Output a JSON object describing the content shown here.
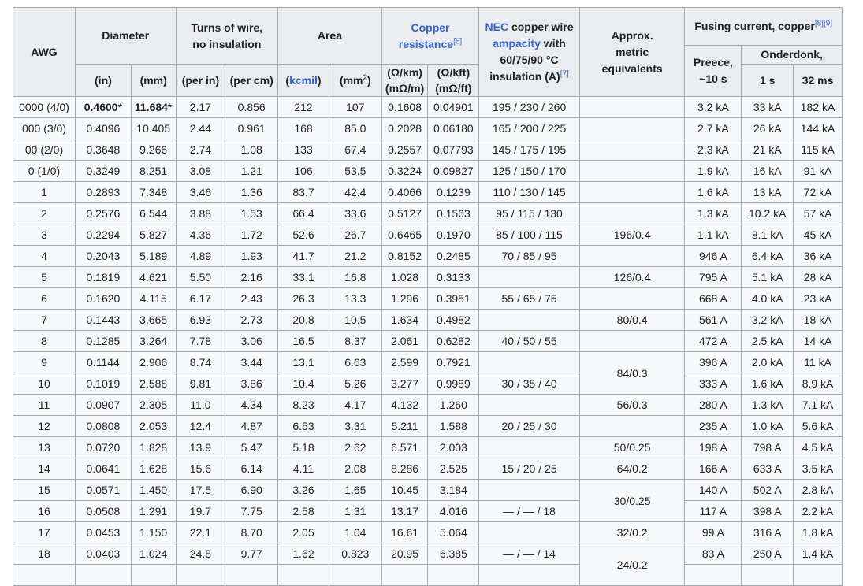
{
  "colors": {
    "link": "#3366cc",
    "header_bg": "#eaecf0",
    "cell_bg": "#f8f9fa",
    "border": "#a2a9b1"
  },
  "headers": {
    "awg": "AWG",
    "diameter": "Diameter",
    "turns": "Turns of wire,",
    "turns2": "no insulation",
    "area": "Area",
    "copper_link": "Copper",
    "copper_link2": "resistance",
    "copper_ref": "[6]",
    "nec_link": "NEC",
    "nec_text1": " copper wire",
    "nec_link2": "ampacity",
    "nec_text2": " with",
    "nec_text3": "60/75/90 °C",
    "nec_text4": "insulation (A)",
    "nec_ref": "[7]",
    "metric1": "Approx.",
    "metric2": "metric",
    "metric3": "equivalents",
    "fusing": "Fusing current, copper",
    "fusing_ref": "[8][9]",
    "in": "(in)",
    "mm": "(mm)",
    "per_in": "(per in)",
    "per_cm": "(per cm)",
    "kcmil_open": "(",
    "kcmil": "kcmil",
    "kcmil_close": ")",
    "mm2": "(mm",
    "mm2_sup": "2",
    "mm2_close": ")",
    "ohm_km": "(Ω/km)",
    "mohm_m": "(mΩ/m)",
    "ohm_kft": "(Ω/kft)",
    "mohm_ft": "(mΩ/ft)",
    "preece1": "Preece,",
    "preece2": "~10 s",
    "onderdonk": "Onderdonk,",
    "s1": "1 s",
    "ms32": "32 ms"
  },
  "rows": [
    {
      "awg": "0000 (4/0)",
      "in": "0.4600",
      "in_ast": "*",
      "mm": "11.684",
      "mm_ast": "*",
      "per_in": "2.17",
      "per_cm": "0.856",
      "kcmil": "212",
      "mm2": "107",
      "ohm_km": "0.1608",
      "ohm_kft": "0.04901",
      "nec": "195 / 230 / 260",
      "preece": "3.2 kA",
      "s1": "33 kA",
      "ms32": "182 kA"
    },
    {
      "awg": "000 (3/0)",
      "in": "0.4096",
      "mm": "10.405",
      "per_in": "2.44",
      "per_cm": "0.961",
      "kcmil": "168",
      "mm2": "85.0",
      "ohm_km": "0.2028",
      "ohm_kft": "0.06180",
      "nec": "165 / 200 / 225",
      "preece": "2.7 kA",
      "s1": "26 kA",
      "ms32": "144 kA"
    },
    {
      "awg": "00 (2/0)",
      "in": "0.3648",
      "mm": "9.266",
      "per_in": "2.74",
      "per_cm": "1.08",
      "kcmil": "133",
      "mm2": "67.4",
      "ohm_km": "0.2557",
      "ohm_kft": "0.07793",
      "nec": "145 / 175 / 195",
      "preece": "2.3 kA",
      "s1": "21 kA",
      "ms32": "115 kA"
    },
    {
      "awg": "0 (1/0)",
      "in": "0.3249",
      "mm": "8.251",
      "per_in": "3.08",
      "per_cm": "1.21",
      "kcmil": "106",
      "mm2": "53.5",
      "ohm_km": "0.3224",
      "ohm_kft": "0.09827",
      "nec": "125 / 150 / 170",
      "preece": "1.9 kA",
      "s1": "16 kA",
      "ms32": "91 kA"
    },
    {
      "awg": "1",
      "in": "0.2893",
      "mm": "7.348",
      "per_in": "3.46",
      "per_cm": "1.36",
      "kcmil": "83.7",
      "mm2": "42.4",
      "ohm_km": "0.4066",
      "ohm_kft": "0.1239",
      "nec": "110 / 130 / 145",
      "preece": "1.6 kA",
      "s1": "13 kA",
      "ms32": "72 kA"
    },
    {
      "awg": "2",
      "in": "0.2576",
      "mm": "6.544",
      "per_in": "3.88",
      "per_cm": "1.53",
      "kcmil": "66.4",
      "mm2": "33.6",
      "ohm_km": "0.5127",
      "ohm_kft": "0.1563",
      "nec": "95 / 115 / 130",
      "preece": "1.3 kA",
      "s1": "10.2 kA",
      "ms32": "57 kA"
    },
    {
      "awg": "3",
      "in": "0.2294",
      "mm": "5.827",
      "per_in": "4.36",
      "per_cm": "1.72",
      "kcmil": "52.6",
      "mm2": "26.7",
      "ohm_km": "0.6465",
      "ohm_kft": "0.1970",
      "nec": "85 / 100 / 115",
      "preece": "1.1 kA",
      "s1": "8.1 kA",
      "ms32": "45 kA"
    },
    {
      "awg": "4",
      "in": "0.2043",
      "mm": "5.189",
      "per_in": "4.89",
      "per_cm": "1.93",
      "kcmil": "41.7",
      "mm2": "21.2",
      "ohm_km": "0.8152",
      "ohm_kft": "0.2485",
      "nec": "70 / 85 / 95",
      "preece": "946 A",
      "s1": "6.4 kA",
      "ms32": "36 kA"
    },
    {
      "awg": "5",
      "in": "0.1819",
      "mm": "4.621",
      "per_in": "5.50",
      "per_cm": "2.16",
      "kcmil": "33.1",
      "mm2": "16.8",
      "ohm_km": "1.028",
      "ohm_kft": "0.3133",
      "nec": "",
      "preece": "795 A",
      "s1": "5.1 kA",
      "ms32": "28 kA"
    },
    {
      "awg": "6",
      "in": "0.1620",
      "mm": "4.115",
      "per_in": "6.17",
      "per_cm": "2.43",
      "kcmil": "26.3",
      "mm2": "13.3",
      "ohm_km": "1.296",
      "ohm_kft": "0.3951",
      "nec": "55 / 65 / 75",
      "preece": "668 A",
      "s1": "4.0 kA",
      "ms32": "23 kA"
    },
    {
      "awg": "7",
      "in": "0.1443",
      "mm": "3.665",
      "per_in": "6.93",
      "per_cm": "2.73",
      "kcmil": "20.8",
      "mm2": "10.5",
      "ohm_km": "1.634",
      "ohm_kft": "0.4982",
      "nec": "",
      "preece": "561 A",
      "s1": "3.2 kA",
      "ms32": "18 kA"
    },
    {
      "awg": "8",
      "in": "0.1285",
      "mm": "3.264",
      "per_in": "7.78",
      "per_cm": "3.06",
      "kcmil": "16.5",
      "mm2": "8.37",
      "ohm_km": "2.061",
      "ohm_kft": "0.6282",
      "nec": "40 / 50 / 55",
      "preece": "472 A",
      "s1": "2.5 kA",
      "ms32": "14 kA"
    },
    {
      "awg": "9",
      "in": "0.1144",
      "mm": "2.906",
      "per_in": "8.74",
      "per_cm": "3.44",
      "kcmil": "13.1",
      "mm2": "6.63",
      "ohm_km": "2.599",
      "ohm_kft": "0.7921",
      "nec": "",
      "preece": "396 A",
      "s1": "2.0 kA",
      "ms32": "11 kA"
    },
    {
      "awg": "10",
      "in": "0.1019",
      "mm": "2.588",
      "per_in": "9.81",
      "per_cm": "3.86",
      "kcmil": "10.4",
      "mm2": "5.26",
      "ohm_km": "3.277",
      "ohm_kft": "0.9989",
      "nec": "30 / 35 / 40",
      "preece": "333 A",
      "s1": "1.6 kA",
      "ms32": "8.9 kA"
    },
    {
      "awg": "11",
      "in": "0.0907",
      "mm": "2.305",
      "per_in": "11.0",
      "per_cm": "4.34",
      "kcmil": "8.23",
      "mm2": "4.17",
      "ohm_km": "4.132",
      "ohm_kft": "1.260",
      "nec": "",
      "preece": "280 A",
      "s1": "1.3 kA",
      "ms32": "7.1 kA"
    },
    {
      "awg": "12",
      "in": "0.0808",
      "mm": "2.053",
      "per_in": "12.4",
      "per_cm": "4.87",
      "kcmil": "6.53",
      "mm2": "3.31",
      "ohm_km": "5.211",
      "ohm_kft": "1.588",
      "nec": "20 / 25 / 30",
      "preece": "235 A",
      "s1": "1.0 kA",
      "ms32": "5.6 kA"
    },
    {
      "awg": "13",
      "in": "0.0720",
      "mm": "1.828",
      "per_in": "13.9",
      "per_cm": "5.47",
      "kcmil": "5.18",
      "mm2": "2.62",
      "ohm_km": "6.571",
      "ohm_kft": "2.003",
      "nec": "",
      "preece": "198 A",
      "s1": "798 A",
      "ms32": "4.5 kA"
    },
    {
      "awg": "14",
      "in": "0.0641",
      "mm": "1.628",
      "per_in": "15.6",
      "per_cm": "6.14",
      "kcmil": "4.11",
      "mm2": "2.08",
      "ohm_km": "8.286",
      "ohm_kft": "2.525",
      "nec": "15 / 20 / 25",
      "preece": "166 A",
      "s1": "633 A",
      "ms32": "3.5 kA"
    },
    {
      "awg": "15",
      "in": "0.0571",
      "mm": "1.450",
      "per_in": "17.5",
      "per_cm": "6.90",
      "kcmil": "3.26",
      "mm2": "1.65",
      "ohm_km": "10.45",
      "ohm_kft": "3.184",
      "nec": "",
      "preece": "140 A",
      "s1": "502 A",
      "ms32": "2.8 kA"
    },
    {
      "awg": "16",
      "in": "0.0508",
      "mm": "1.291",
      "per_in": "19.7",
      "per_cm": "7.75",
      "kcmil": "2.58",
      "mm2": "1.31",
      "ohm_km": "13.17",
      "ohm_kft": "4.016",
      "nec": "— / — / 18",
      "preece": "117 A",
      "s1": "398 A",
      "ms32": "2.2 kA"
    },
    {
      "awg": "17",
      "in": "0.0453",
      "mm": "1.150",
      "per_in": "22.1",
      "per_cm": "8.70",
      "kcmil": "2.05",
      "mm2": "1.04",
      "ohm_km": "16.61",
      "ohm_kft": "5.064",
      "nec": "",
      "preece": "99 A",
      "s1": "316 A",
      "ms32": "1.8 kA"
    },
    {
      "awg": "18",
      "in": "0.0403",
      "mm": "1.024",
      "per_in": "24.8",
      "per_cm": "9.77",
      "kcmil": "1.62",
      "mm2": "0.823",
      "ohm_km": "20.95",
      "ohm_kft": "6.385",
      "nec": "— / — / 14",
      "preece": "83 A",
      "s1": "250 A",
      "ms32": "1.4 kA"
    }
  ],
  "metric": {
    "r3": "196/0.4",
    "r5": "126/0.4",
    "r7": "80/0.4",
    "r9_10": "84/0.3",
    "r11": "56/0.3",
    "r13": "50/0.25",
    "r14": "64/0.2",
    "r15_16": "30/0.25",
    "r17": "32/0.2",
    "r18": "24/0.2"
  }
}
